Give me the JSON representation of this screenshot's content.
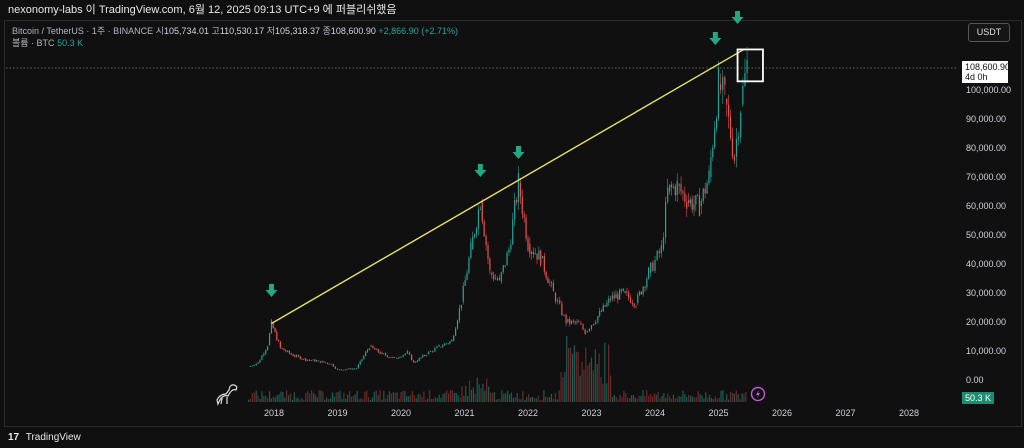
{
  "header": {
    "title": "nexonomy-labs 이 TradingView.com, 6월 12, 2025 09:13 UTC+9 에 퍼블리쉬했음"
  },
  "legend": {
    "symbol": "Bitcoin / TetherUS · 1주 · BINANCE",
    "open_label": "시",
    "open": "105,734.01",
    "high_label": "고",
    "high": "110,530.17",
    "low_label": "저",
    "low": "105,318.37",
    "close_label": "종",
    "close": "108,600.90",
    "change": "+2,866.90 (+2.71%)",
    "volume_label": "볼륨 · BTC",
    "volume_value": "50.3 K"
  },
  "currency_button": "USDT",
  "price_tag": {
    "price": "108,600.90",
    "countdown": "4d 0h"
  },
  "volume_tag": "50.3 K",
  "footer": {
    "brand": "TradingView"
  },
  "colors": {
    "up": "#26a69a",
    "down": "#ef5350",
    "trendline": "#e8e06a",
    "arrow": "#22a884"
  },
  "chart_data": {
    "type": "candlestick",
    "price_axis_ticks": [
      "0.00",
      "10,000.00",
      "20,000.00",
      "30,000.00",
      "40,000.00",
      "50,000.00",
      "60,000.00",
      "70,000.00",
      "80,000.00",
      "90,000.00",
      "100,000.00"
    ],
    "time_axis_ticks": [
      "2018",
      "2019",
      "2020",
      "2021",
      "2022",
      "2023",
      "2024",
      "2025",
      "2026",
      "2027",
      "2028"
    ],
    "ylim": [
      0,
      110000
    ],
    "series": [
      {
        "name": "",
        "x": [
          2017.6,
          2017.75,
          2017.9,
          2017.96,
          2018.1,
          2018.3,
          2018.5,
          2018.7,
          2018.9,
          2019.0,
          2019.3,
          2019.5,
          2019.7,
          2019.9,
          2020.1,
          2020.2,
          2020.4,
          2020.6,
          2020.8,
          2020.95,
          2021.1,
          2021.25,
          2021.4,
          2021.55,
          2021.7,
          2021.85,
          2022.0,
          2022.2,
          2022.4,
          2022.6,
          2022.8,
          2022.9,
          2023.1,
          2023.3,
          2023.5,
          2023.7,
          2023.9,
          2024.1,
          2024.2,
          2024.35,
          2024.5,
          2024.7,
          2024.85,
          2025.0,
          2025.1,
          2025.25,
          2025.35,
          2025.45
        ],
        "values": [
          4500,
          6000,
          12000,
          19500,
          11000,
          8500,
          7000,
          6500,
          5500,
          3500,
          4000,
          11500,
          9000,
          7500,
          9500,
          6000,
          9000,
          11500,
          13500,
          27000,
          45000,
          62000,
          37000,
          34000,
          45000,
          68000,
          47000,
          42000,
          30000,
          20000,
          19500,
          16500,
          22000,
          28000,
          30000,
          26500,
          37000,
          45000,
          65000,
          67000,
          62000,
          60000,
          70000,
          102000,
          97000,
          77000,
          95000,
          108600
        ]
      }
    ],
    "trendline": {
      "from": [
        2017.96,
        19500
      ],
      "to": [
        2025.4,
        114000
      ]
    },
    "markers": {
      "type": "arrow-down",
      "x": [
        2017.96,
        2021.25,
        2021.85,
        2024.95,
        2025.3
      ]
    },
    "highlight_box": {
      "x": [
        2025.3,
        2025.7
      ],
      "y": [
        103000,
        114000
      ]
    },
    "current_price": 108600.9,
    "volume_current": "50.3 K"
  }
}
